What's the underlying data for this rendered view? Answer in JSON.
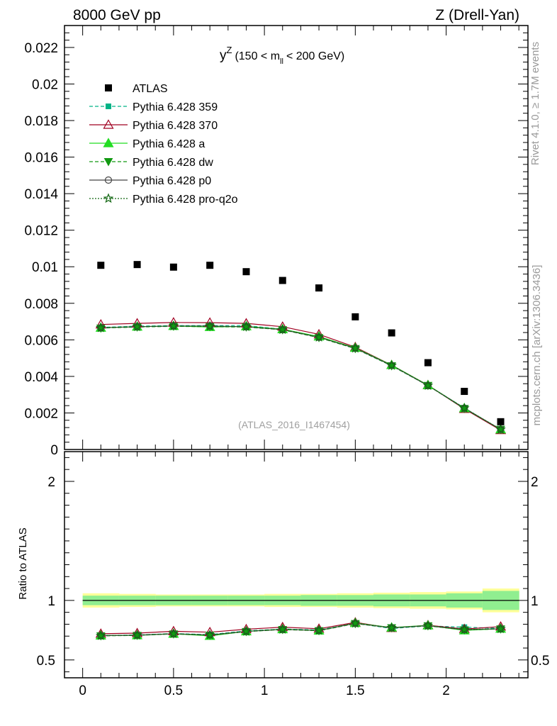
{
  "header": {
    "left": "8000 GeV pp",
    "right": "Z (Drell-Yan)"
  },
  "side_labels": {
    "rivet": "Rivet 4.1.0, ≥ 1.7M events",
    "mcplots": "mcplots.cern.ch [arXiv:1306.3436]"
  },
  "title": {
    "main": "y",
    "sup": "Z",
    "range_pre": "(150 < m",
    "sub": "ll",
    "range_post": "< 200 GeV)"
  },
  "watermark": "(ATLAS_2016_I1467454)",
  "ratio_ylabel": "Ratio to ATLAS",
  "colors": {
    "atlas": "#000000",
    "p359": "#00b386",
    "p370": "#a00020",
    "pa": "#22dd22",
    "pdw": "#119911",
    "pp0": "#444444",
    "pq2o": "#116611",
    "band_inner": "#90ee90",
    "band_outer": "#ffff99"
  },
  "chart_data": [
    {
      "panel": "main",
      "type": "scatter",
      "title": "y^Z (150 < m_ll < 200 GeV)",
      "xlim": [
        -0.1,
        2.45
      ],
      "ylim": [
        0,
        0.0232
      ],
      "yticks": [
        {
          "v": 0,
          "label": "0"
        },
        {
          "v": 0.002,
          "label": "0.002"
        },
        {
          "v": 0.004,
          "label": "0.004"
        },
        {
          "v": 0.006,
          "label": "0.006"
        },
        {
          "v": 0.008,
          "label": "0.008"
        },
        {
          "v": 0.01,
          "label": "0.01"
        },
        {
          "v": 0.012,
          "label": "0.012"
        },
        {
          "v": 0.014,
          "label": "0.014"
        },
        {
          "v": 0.016,
          "label": "0.016"
        },
        {
          "v": 0.018,
          "label": "0.018"
        },
        {
          "v": 0.02,
          "label": "0.02"
        },
        {
          "v": 0.022,
          "label": "0.022"
        }
      ],
      "x": [
        0.1,
        0.3,
        0.5,
        0.7,
        0.9,
        1.1,
        1.3,
        1.5,
        1.7,
        1.9,
        2.1,
        2.3
      ],
      "atlas": {
        "name": "ATLAS",
        "values": [
          0.01008,
          0.01012,
          0.00998,
          0.01008,
          0.00973,
          0.00925,
          0.00884,
          0.00726,
          0.00638,
          0.00475,
          0.00318,
          0.00152
        ]
      },
      "series": [
        {
          "key": "p359",
          "name": "Pythia 6.428 359",
          "marker": "square-filled",
          "dash": "5,3",
          "values": [
            0.00668,
            0.00675,
            0.00678,
            0.00678,
            0.00678,
            0.00658,
            0.00615,
            0.00552,
            0.00458,
            0.0035,
            0.00228,
            0.00108
          ]
        },
        {
          "key": "p370",
          "name": "Pythia 6.428 370",
          "marker": "triangle-open",
          "dash": "",
          "values": [
            0.00684,
            0.0069,
            0.00695,
            0.00694,
            0.0069,
            0.00672,
            0.0063,
            0.0056,
            0.00462,
            0.00352,
            0.00222,
            0.00106
          ]
        },
        {
          "key": "pa",
          "name": "Pythia 6.428 a",
          "marker": "triangle-filled",
          "dash": "",
          "values": [
            0.00666,
            0.00672,
            0.00676,
            0.0067,
            0.00674,
            0.00658,
            0.00618,
            0.00556,
            0.00462,
            0.00352,
            0.00226,
            0.0011
          ]
        },
        {
          "key": "pdw",
          "name": "Pythia 6.428 dw",
          "marker": "triangledown-filled",
          "dash": "5,3",
          "values": [
            0.00664,
            0.0067,
            0.00674,
            0.00672,
            0.0067,
            0.00655,
            0.00612,
            0.00552,
            0.00458,
            0.0035,
            0.00224,
            0.0011
          ]
        },
        {
          "key": "pp0",
          "name": "Pythia 6.428 p0",
          "marker": "circle-open",
          "dash": "",
          "values": [
            0.00666,
            0.00672,
            0.00676,
            0.00676,
            0.00672,
            0.00656,
            0.00614,
            0.00554,
            0.0046,
            0.0035,
            0.00226,
            0.0011
          ]
        },
        {
          "key": "pq2o",
          "name": "Pythia 6.428 pro-q2o",
          "marker": "star-open",
          "dash": "2,2",
          "values": [
            0.00666,
            0.00672,
            0.00676,
            0.00674,
            0.00672,
            0.00656,
            0.00614,
            0.00554,
            0.0046,
            0.0035,
            0.00226,
            0.0011
          ]
        }
      ]
    },
    {
      "panel": "ratio",
      "type": "line",
      "ylabel": "Ratio to ATLAS",
      "xlim": [
        -0.1,
        2.45
      ],
      "ylim": [
        0.35,
        2.25
      ],
      "xticks": [
        {
          "v": 0,
          "label": "0"
        },
        {
          "v": 0.5,
          "label": "0.5"
        },
        {
          "v": 1,
          "label": "1"
        },
        {
          "v": 1.5,
          "label": "1.5"
        },
        {
          "v": 2,
          "label": "2"
        }
      ],
      "yticks": [
        {
          "v": 0.5,
          "label": "0.5"
        },
        {
          "v": 1,
          "label": "1"
        },
        {
          "v": 2,
          "label": "2"
        }
      ],
      "band_edges": [
        0,
        0.2,
        0.4,
        0.6,
        0.8,
        1.0,
        1.2,
        1.4,
        1.6,
        1.8,
        2.0,
        2.2,
        2.4
      ],
      "band_inner": [
        0.04,
        0.04,
        0.04,
        0.04,
        0.04,
        0.04,
        0.045,
        0.045,
        0.05,
        0.05,
        0.06,
        0.08
      ],
      "band_outer": [
        0.06,
        0.055,
        0.05,
        0.05,
        0.05,
        0.055,
        0.055,
        0.06,
        0.065,
        0.07,
        0.075,
        0.1
      ],
      "x": [
        0.1,
        0.3,
        0.5,
        0.7,
        0.9,
        1.1,
        1.3,
        1.5,
        1.7,
        1.9,
        2.1,
        2.3
      ],
      "series": [
        {
          "key": "p359",
          "values": [
            0.705,
            0.71,
            0.722,
            0.713,
            0.744,
            0.76,
            0.752,
            0.808,
            0.764,
            0.786,
            0.775,
            0.765
          ]
        },
        {
          "key": "p370",
          "values": [
            0.72,
            0.725,
            0.741,
            0.733,
            0.758,
            0.775,
            0.762,
            0.815,
            0.768,
            0.792,
            0.76,
            0.78
          ]
        },
        {
          "key": "pa",
          "values": [
            0.705,
            0.707,
            0.72,
            0.702,
            0.74,
            0.758,
            0.747,
            0.81,
            0.772,
            0.79,
            0.748,
            0.762
          ]
        },
        {
          "key": "pdw",
          "values": [
            0.702,
            0.706,
            0.718,
            0.707,
            0.738,
            0.755,
            0.745,
            0.805,
            0.77,
            0.786,
            0.752,
            0.76
          ]
        },
        {
          "key": "pp0",
          "values": [
            0.704,
            0.708,
            0.72,
            0.71,
            0.74,
            0.757,
            0.748,
            0.808,
            0.77,
            0.788,
            0.755,
            0.762
          ]
        },
        {
          "key": "pq2o",
          "values": [
            0.704,
            0.708,
            0.72,
            0.71,
            0.74,
            0.757,
            0.748,
            0.808,
            0.77,
            0.788,
            0.755,
            0.762
          ]
        }
      ]
    }
  ]
}
